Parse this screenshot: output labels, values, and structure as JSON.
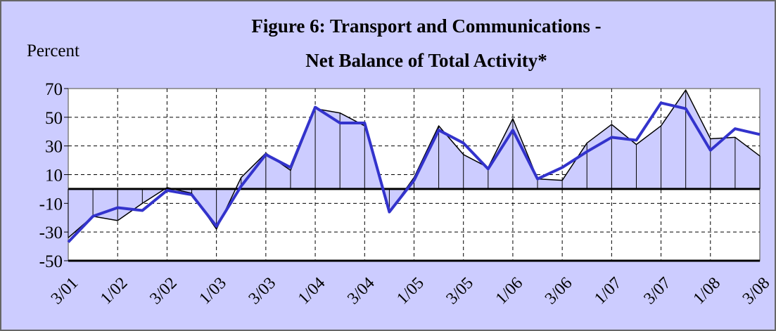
{
  "chart_data": {
    "type": "line",
    "title": [
      "Figure 6: Transport and Communications -",
      "Net Balance of Total Activity*"
    ],
    "y_label": "Percent",
    "categories": [
      "3/01",
      null,
      "1/02",
      null,
      "3/02",
      null,
      "1/03",
      null,
      "3/03",
      null,
      "1/04",
      null,
      "3/04",
      null,
      "1/05",
      null,
      "3/05",
      null,
      "1/06",
      null,
      "3/06",
      null,
      "1/07",
      null,
      "3/07",
      null,
      "1/08",
      null,
      "3/08"
    ],
    "series": [
      {
        "color": "#000000",
        "fill": "#ccccff",
        "drop_lines": true,
        "values": [
          -34,
          -19,
          -22,
          -10,
          1,
          -3,
          -28,
          8,
          25,
          13,
          56,
          53,
          44,
          -16,
          8,
          44,
          24,
          15,
          49,
          7,
          6,
          32,
          45,
          31,
          44,
          69,
          35,
          36,
          23
        ]
      },
      {
        "color": "#3333cc",
        "values": [
          -37,
          -19,
          -13,
          -15,
          -1,
          -4,
          -26,
          2,
          24,
          15,
          57,
          46,
          46,
          -16,
          6,
          41,
          32,
          14,
          41,
          7,
          15,
          26,
          36,
          34,
          60,
          56,
          27,
          42,
          38
        ]
      }
    ],
    "ylim": [
      -50,
      70
    ],
    "yticks": [
      -50,
      -30,
      -10,
      10,
      30,
      50,
      70
    ],
    "grid": true
  }
}
